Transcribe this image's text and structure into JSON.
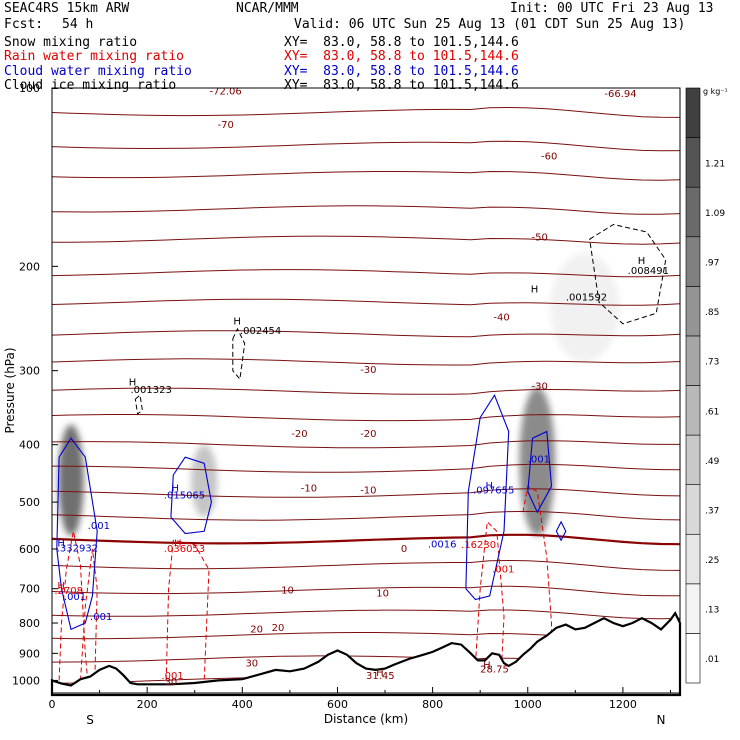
{
  "header": {
    "model": "SEAC4RS 15km ARW",
    "org": "NCAR/MMM",
    "init": "Init: 00 UTC Fri 23 Aug 13",
    "fcst_label": "Fcst:",
    "fcst_value": "54 h",
    "valid": "Valid: 06 UTC Sun 25 Aug 13 (01 CDT Sun 25 Aug 13)",
    "fields": [
      {
        "name": "Snow mixing ratio",
        "xy": "XY=  83.0, 58.8 to 101.5,144.6",
        "color": "#000000"
      },
      {
        "name": "Rain water mixing ratio",
        "xy": "XY=  83.0, 58.8 to 101.5,144.6",
        "color": "#e00000"
      },
      {
        "name": "Cloud water mixing ratio",
        "xy": "XY=  83.0, 58.8 to 101.5,144.6",
        "color": "#0000cc"
      },
      {
        "name": "Cloud ice mixing ratio",
        "xy": "XY=  83.0, 58.8 to 101.5,144.6",
        "color": "#000000"
      }
    ]
  },
  "chart_data": {
    "type": "cross-section contour",
    "xlabel": "Distance (km)",
    "ylabel": "Pressure (hPa)",
    "xlim": [
      0,
      1320
    ],
    "ylim": [
      1050,
      100
    ],
    "y_log": true,
    "x_ticks": [
      0,
      200,
      400,
      600,
      800,
      1000,
      1200
    ],
    "y_ticks": [
      100,
      200,
      300,
      400,
      500,
      600,
      700,
      800,
      900,
      1000
    ],
    "end_labels": {
      "left": "S",
      "right": "N"
    },
    "colorbar": {
      "unit": "g kg⁻¹",
      "levels": [
        ".01",
        ".13",
        ".25",
        ".37",
        ".49",
        ".61",
        ".73",
        ".85",
        ".97",
        "1.09",
        "1.21"
      ],
      "colors": [
        "#ffffff",
        "#f4f4f4",
        "#e6e6e6",
        "#d8d8d8",
        "#c8c8c8",
        "#b8b8b8",
        "#a6a6a6",
        "#949494",
        "#808080",
        "#6a6a6a",
        "#545454",
        "#404040"
      ]
    },
    "temperature_contour_labels": [
      {
        "x": 365,
        "p": 101,
        "text": "-72.06"
      },
      {
        "x": 1195,
        "p": 102,
        "text": "-66.94"
      },
      {
        "x": 365,
        "p": 115,
        "text": "-70"
      },
      {
        "x": 1045,
        "p": 130,
        "text": "-60"
      },
      {
        "x": 1025,
        "p": 178,
        "text": "-50"
      },
      {
        "x": 945,
        "p": 243,
        "text": "-40"
      },
      {
        "x": 665,
        "p": 298,
        "text": "-30"
      },
      {
        "x": 1025,
        "p": 318,
        "text": "-30"
      },
      {
        "x": 520,
        "p": 382,
        "text": "-20"
      },
      {
        "x": 665,
        "p": 382,
        "text": "-20"
      },
      {
        "x": 540,
        "p": 472,
        "text": "-10"
      },
      {
        "x": 665,
        "p": 476,
        "text": "-10"
      },
      {
        "x": 740,
        "p": 598,
        "text": "0"
      },
      {
        "x": 495,
        "p": 702,
        "text": "10"
      },
      {
        "x": 695,
        "p": 710,
        "text": "10"
      },
      {
        "x": 430,
        "p": 817,
        "text": "20"
      },
      {
        "x": 475,
        "p": 812,
        "text": "20"
      },
      {
        "x": 420,
        "p": 932,
        "text": "30"
      },
      {
        "x": 250,
        "p": 1002,
        "text": "30"
      }
    ],
    "maxima_labels": [
      {
        "x": 165,
        "p": 322,
        "text": ".001323",
        "color": "#000000"
      },
      {
        "x": 395,
        "p": 256,
        "text": ".002454",
        "color": "#000000"
      },
      {
        "x": 1080,
        "p": 225,
        "text": ".001592",
        "color": "#000000"
      },
      {
        "x": 1210,
        "p": 203,
        "text": ".008491",
        "color": "#000000"
      },
      {
        "x": 235,
        "p": 485,
        "text": ".015065",
        "color": "#0000cc"
      },
      {
        "x": 10,
        "p": 597,
        "text": ".332932",
        "color": "#0000cc"
      },
      {
        "x": 75,
        "p": 547,
        "text": ".001",
        "color": "#0000cc"
      },
      {
        "x": 1000,
        "p": 422,
        "text": ".001",
        "color": "#0000cc"
      },
      {
        "x": 885,
        "p": 476,
        "text": ".097655",
        "color": "#0000cc"
      },
      {
        "x": 790,
        "p": 587,
        "text": ".0016",
        "color": "#0000cc"
      },
      {
        "x": 25,
        "p": 720,
        "text": ".001",
        "color": "#0000cc"
      },
      {
        "x": 80,
        "p": 778,
        "text": ".001",
        "color": "#0000cc"
      },
      {
        "x": 235,
        "p": 598,
        "text": ".036053",
        "color": "#e00000"
      },
      {
        "x": 5,
        "p": 704,
        "text": ".2708",
        "color": "#e00000"
      },
      {
        "x": 860,
        "p": 588,
        "text": ".16230",
        "color": "#e00000"
      },
      {
        "x": 925,
        "p": 647,
        "text": ".001",
        "color": "#e00000"
      },
      {
        "x": 230,
        "p": 980,
        "text": ".001",
        "color": "#e00000"
      },
      {
        "x": 660,
        "p": 980,
        "text": "31.45",
        "color": "#800000"
      },
      {
        "x": 900,
        "p": 955,
        "text": "28.75",
        "color": "#800000"
      }
    ],
    "h_markers": [
      {
        "x": 155,
        "p": 313,
        "color": "#000000"
      },
      {
        "x": 375,
        "p": 247,
        "color": "#000000"
      },
      {
        "x": 1000,
        "p": 218,
        "color": "#000000"
      },
      {
        "x": 1225,
        "p": 195,
        "color": "#000000"
      },
      {
        "x": 245,
        "p": 472,
        "color": "#0000cc"
      },
      {
        "x": 5,
        "p": 585,
        "color": "#0000cc"
      },
      {
        "x": 905,
        "p": 468,
        "color": "#0000cc"
      },
      {
        "x": 250,
        "p": 585,
        "color": "#e00000"
      },
      {
        "x": 5,
        "p": 690,
        "color": "#e00000"
      },
      {
        "x": 675,
        "p": 968,
        "color": "#800000"
      },
      {
        "x": 900,
        "p": 940,
        "color": "#800000"
      }
    ],
    "terrain_top": [
      [
        0,
        1000
      ],
      [
        20,
        1012
      ],
      [
        40,
        1020
      ],
      [
        60,
        995
      ],
      [
        80,
        985
      ],
      [
        100,
        960
      ],
      [
        120,
        945
      ],
      [
        135,
        955
      ],
      [
        150,
        980
      ],
      [
        165,
        1010
      ],
      [
        180,
        1015
      ],
      [
        200,
        1015
      ],
      [
        250,
        1015
      ],
      [
        300,
        1010
      ],
      [
        350,
        1000
      ],
      [
        400,
        995
      ],
      [
        440,
        975
      ],
      [
        470,
        960
      ],
      [
        500,
        965
      ],
      [
        530,
        955
      ],
      [
        560,
        930
      ],
      [
        580,
        905
      ],
      [
        600,
        890
      ],
      [
        620,
        905
      ],
      [
        640,
        935
      ],
      [
        660,
        955
      ],
      [
        680,
        960
      ],
      [
        700,
        955
      ],
      [
        720,
        940
      ],
      [
        750,
        920
      ],
      [
        780,
        905
      ],
      [
        800,
        895
      ],
      [
        820,
        880
      ],
      [
        840,
        865
      ],
      [
        860,
        870
      ],
      [
        880,
        900
      ],
      [
        895,
        925
      ],
      [
        910,
        925
      ],
      [
        925,
        900
      ],
      [
        940,
        905
      ],
      [
        950,
        935
      ],
      [
        960,
        945
      ],
      [
        975,
        930
      ],
      [
        990,
        905
      ],
      [
        1005,
        885
      ],
      [
        1020,
        860
      ],
      [
        1040,
        840
      ],
      [
        1060,
        815
      ],
      [
        1080,
        805
      ],
      [
        1100,
        820
      ],
      [
        1120,
        815
      ],
      [
        1140,
        800
      ],
      [
        1160,
        785
      ],
      [
        1180,
        800
      ],
      [
        1200,
        810
      ],
      [
        1220,
        800
      ],
      [
        1240,
        785
      ],
      [
        1260,
        800
      ],
      [
        1280,
        820
      ],
      [
        1300,
        790
      ],
      [
        1310,
        770
      ],
      [
        1320,
        800
      ]
    ]
  }
}
